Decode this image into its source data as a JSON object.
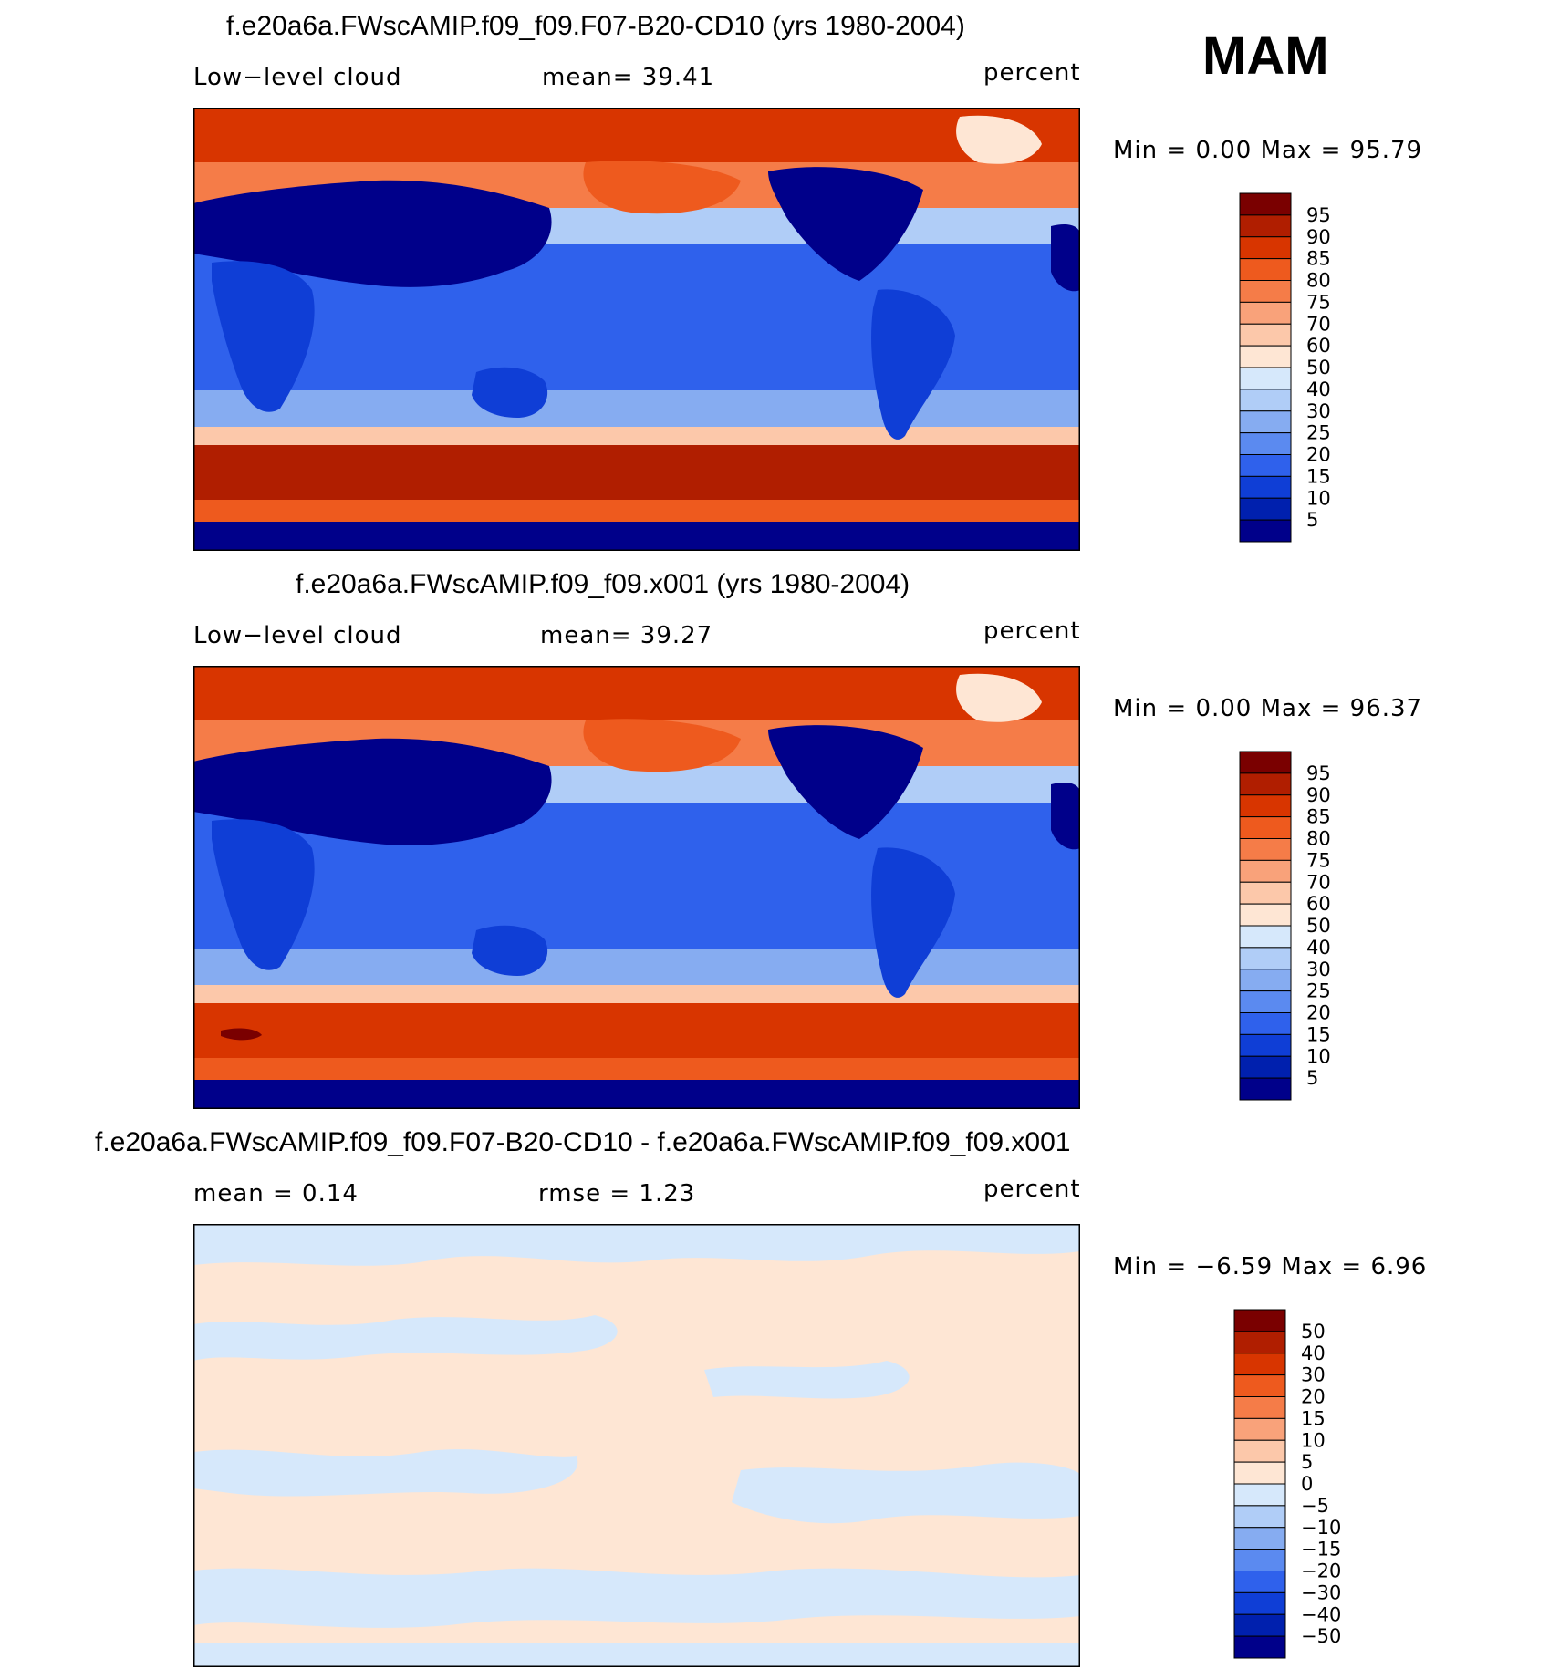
{
  "season": "MAM",
  "panels": [
    {
      "title": "f.e20a6a.FWscAMIP.f09_f09.F07-B20-CD10 (yrs 1980-2004)",
      "left_label": "Low−level cloud",
      "center_label": "mean=   39.41",
      "units": "percent",
      "minmax": "Min =    0.00  Max =   95.79",
      "kind": "field"
    },
    {
      "title": "f.e20a6a.FWscAMIP.f09_f09.x001 (yrs 1980-2004)",
      "left_label": "Low−level cloud",
      "center_label": "mean=   39.27",
      "units": "percent",
      "minmax": "Min =    0.00  Max =   96.37",
      "kind": "field"
    },
    {
      "title": "f.e20a6a.FWscAMIP.f09_f09.F07-B20-CD10 - f.e20a6a.FWscAMIP.f09_f09.x001",
      "left_label": "mean =     0.14",
      "center_label": "rmse =     1.23",
      "units": "percent",
      "minmax": "Min =   −6.59  Max =    6.96",
      "kind": "diff"
    }
  ],
  "colorbars": {
    "field": {
      "labels": [
        "95",
        "90",
        "85",
        "80",
        "75",
        "70",
        "60",
        "50",
        "40",
        "30",
        "25",
        "20",
        "15",
        "10",
        "5"
      ],
      "colors": [
        "#7a0000",
        "#b01e00",
        "#d83500",
        "#ee5a1e",
        "#f57c48",
        "#f9a27a",
        "#fcc8aa",
        "#fee6d4",
        "#d6e8fb",
        "#b0cdf7",
        "#86acf1",
        "#5b8af0",
        "#2f61ec",
        "#0f3ed6",
        "#0020ae",
        "#00008a"
      ]
    },
    "diff": {
      "labels": [
        "50",
        "40",
        "30",
        "20",
        "15",
        "10",
        "5",
        "0",
        "−5",
        "−10",
        "−15",
        "−20",
        "−30",
        "−40",
        "−50"
      ],
      "colors": [
        "#7a0000",
        "#b01e00",
        "#d83500",
        "#ee5a1e",
        "#f57c48",
        "#f9a27a",
        "#fcc8aa",
        "#fee6d4",
        "#d6e8fb",
        "#b0cdf7",
        "#86acf1",
        "#5b8af0",
        "#2f61ec",
        "#0f3ed6",
        "#0020ae",
        "#00008a"
      ]
    }
  }
}
